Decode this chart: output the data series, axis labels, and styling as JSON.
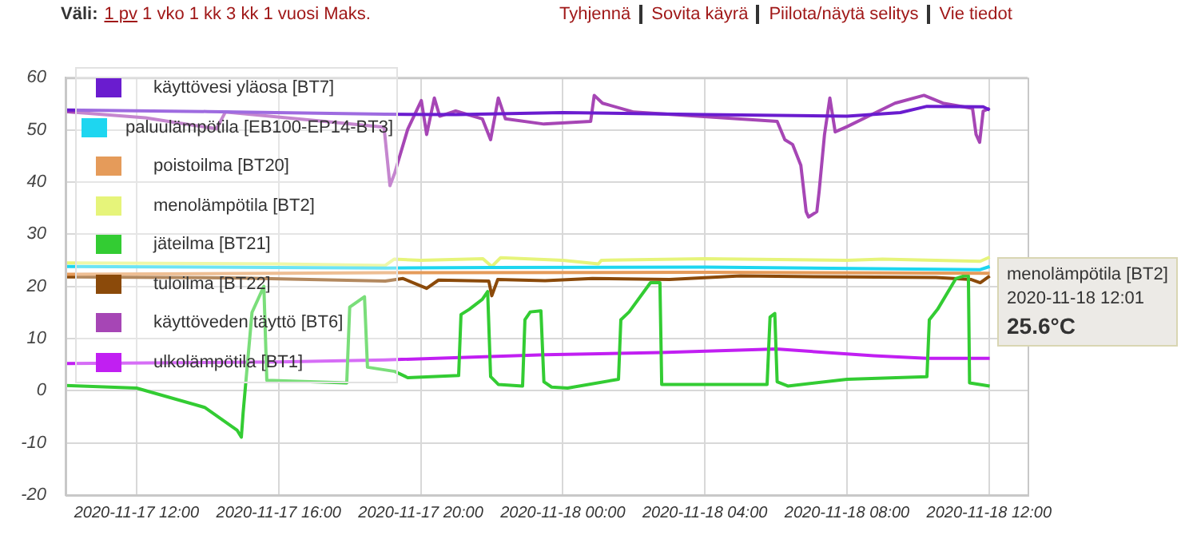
{
  "chart_data": {
    "type": "line",
    "xlim": [
      "2020-11-17T10:00",
      "2020-11-18T13:05"
    ],
    "xticks": [
      {
        "value": "2020-11-17T12:00",
        "label": "2020-11-17 12:00"
      },
      {
        "value": "2020-11-17T16:00",
        "label": "2020-11-17 16:00"
      },
      {
        "value": "2020-11-17T20:00",
        "label": "2020-11-17 20:00"
      },
      {
        "value": "2020-11-18T00:00",
        "label": "2020-11-18 00:00"
      },
      {
        "value": "2020-11-18T04:00",
        "label": "2020-11-18 04:00"
      },
      {
        "value": "2020-11-18T08:00",
        "label": "2020-11-18 08:00"
      },
      {
        "value": "2020-11-18T12:00",
        "label": "2020-11-18 12:00"
      }
    ],
    "ylim": [
      -20,
      60
    ],
    "yticks": [
      -20,
      -10,
      0,
      10,
      20,
      30,
      40,
      50,
      60
    ],
    "grid": true,
    "legend": "top left",
    "marker": "none",
    "line_style": "solid",
    "annotations": [
      "Väli:",
      "1 pv",
      "1 vko",
      "1 kk",
      "3 kk",
      "1 vuosi",
      "Maks.",
      "Tyhjennä",
      "Sovita käyrä",
      "Piilota/näytä selitys",
      "Vie tiedot",
      "menolämpötila [BT2]",
      "2020-11-18 12:01",
      "25.6°C"
    ],
    "series": [
      {
        "name": "käyttövesi yläosa [BT7]",
        "color": "#6a1ccf",
        "x": [
          "2020-11-17T10:00",
          "2020-11-17T14:00",
          "2020-11-17T19:00",
          "2020-11-17T21:00",
          "2020-11-18T00:00",
          "2020-11-18T04:00",
          "2020-11-18T08:00",
          "2020-11-18T09:30",
          "2020-11-18T10:15",
          "2020-11-18T11:50",
          "2020-11-18T12:01"
        ],
        "values": [
          53.8,
          53.5,
          53.0,
          52.9,
          53.3,
          52.9,
          52.6,
          53.3,
          54.5,
          54.4,
          53.8
        ]
      },
      {
        "name": "paluulämpötila [EB100-EP14-BT3]",
        "color": "#1ed6f0",
        "x": [
          "2020-11-17T10:00",
          "2020-11-17T19:00",
          "2020-11-17T22:00",
          "2020-11-18T04:00",
          "2020-11-18T11:45",
          "2020-11-18T12:01"
        ],
        "values": [
          23.8,
          23.5,
          23.6,
          23.7,
          23.2,
          23.8
        ]
      },
      {
        "name": "poistoilma [BT20]",
        "color": "#e59b5a",
        "x": [
          "2020-11-17T10:00",
          "2020-11-17T19:00",
          "2020-11-18T04:00",
          "2020-11-18T12:01"
        ],
        "values": [
          22.3,
          22.6,
          22.7,
          22.5
        ]
      },
      {
        "name": "menolämpötila [BT2]",
        "color": "#e6f47a",
        "x": [
          "2020-11-17T10:00",
          "2020-11-17T16:00",
          "2020-11-17T19:00",
          "2020-11-17T19:15",
          "2020-11-17T20:00",
          "2020-11-17T21:45",
          "2020-11-17T22:00",
          "2020-11-17T22:15",
          "2020-11-18T00:00",
          "2020-11-18T01:00",
          "2020-11-18T01:05",
          "2020-11-18T04:00",
          "2020-11-18T08:00",
          "2020-11-18T09:00",
          "2020-11-18T11:45",
          "2020-11-18T12:01"
        ],
        "values": [
          24.5,
          24.3,
          24.0,
          25.2,
          25.0,
          25.3,
          23.8,
          25.5,
          25.0,
          24.3,
          25.0,
          25.3,
          25.0,
          25.2,
          24.8,
          25.6
        ]
      },
      {
        "name": "jäteilma [BT21]",
        "color": "#33cc33",
        "x": [
          "2020-11-17T10:00",
          "2020-11-17T12:00",
          "2020-11-17T13:55",
          "2020-11-17T14:50",
          "2020-11-17T14:57",
          "2020-11-17T15:00",
          "2020-11-17T15:15",
          "2020-11-17T15:35",
          "2020-11-17T15:40",
          "2020-11-17T17:55",
          "2020-11-17T18:00",
          "2020-11-17T18:25",
          "2020-11-17T18:30",
          "2020-11-17T19:16",
          "2020-11-17T19:38",
          "2020-11-17T21:04",
          "2020-11-17T21:08",
          "2020-11-17T21:22",
          "2020-11-17T21:44",
          "2020-11-17T21:53",
          "2020-11-17T21:58",
          "2020-11-17T22:11",
          "2020-11-17T22:52",
          "2020-11-17T22:56",
          "2020-11-17T23:05",
          "2020-11-17T23:23",
          "2020-11-17T23:28",
          "2020-11-17T23:41",
          "2020-11-18T00:08",
          "2020-11-18T01:34",
          "2020-11-18T01:38",
          "2020-11-18T01:52",
          "2020-11-18T02:28",
          "2020-11-18T02:44",
          "2020-11-18T02:47",
          "2020-11-18T05:45",
          "2020-11-18T05:50",
          "2020-11-18T05:58",
          "2020-11-18T06:02",
          "2020-11-18T06:20",
          "2020-11-18T08:00",
          "2020-11-18T10:15",
          "2020-11-18T10:19",
          "2020-11-18T10:33",
          "2020-11-18T11:04",
          "2020-11-18T11:17",
          "2020-11-18T11:25",
          "2020-11-18T11:27",
          "2020-11-18T12:01"
        ],
        "values": [
          1.0,
          0.5,
          -3.2,
          -7.6,
          -8.9,
          -4.2,
          15.0,
          20.0,
          2.0,
          1.5,
          16.0,
          18.0,
          4.5,
          3.7,
          2.5,
          2.9,
          14.6,
          15.6,
          17.5,
          19.0,
          2.7,
          1.2,
          0.9,
          13.6,
          15.1,
          15.3,
          1.7,
          0.7,
          0.5,
          2.2,
          13.6,
          15.1,
          20.7,
          20.7,
          1.2,
          1.2,
          14.1,
          14.8,
          1.7,
          0.9,
          2.2,
          2.7,
          13.6,
          15.6,
          21.5,
          22.0,
          22.0,
          1.5,
          0.9
        ]
      },
      {
        "name": "tuloilma [BT22]",
        "color": "#8b4a0a",
        "x": [
          "2020-11-17T10:00",
          "2020-11-17T15:00",
          "2020-11-17T19:00",
          "2020-11-17T19:30",
          "2020-11-17T20:10",
          "2020-11-17T20:30",
          "2020-11-17T21:55",
          "2020-11-17T22:00",
          "2020-11-17T22:10",
          "2020-11-17T23:30",
          "2020-11-18T00:50",
          "2020-11-18T03:00",
          "2020-11-18T05:00",
          "2020-11-18T08:00",
          "2020-11-18T10:30",
          "2020-11-18T11:30",
          "2020-11-18T11:45",
          "2020-11-18T12:01"
        ],
        "values": [
          21.8,
          21.6,
          21.0,
          21.5,
          19.6,
          21.2,
          21.0,
          18.2,
          21.3,
          21.1,
          21.5,
          21.3,
          22.0,
          21.8,
          21.7,
          21.3,
          20.7,
          22.0
        ]
      },
      {
        "name": "käyttöveden täyttö [BT6]",
        "color": "#a646b5",
        "x": [
          "2020-11-17T10:00",
          "2020-11-17T12:15",
          "2020-11-17T14:15",
          "2020-11-17T14:30",
          "2020-11-17T17:10",
          "2020-11-17T18:58",
          "2020-11-17T19:08",
          "2020-11-17T19:16",
          "2020-11-17T19:38",
          "2020-11-17T20:01",
          "2020-11-17T20:10",
          "2020-11-17T20:23",
          "2020-11-17T20:32",
          "2020-11-17T20:59",
          "2020-11-17T21:44",
          "2020-11-17T21:58",
          "2020-11-17T22:11",
          "2020-11-17T22:23",
          "2020-11-17T23:28",
          "2020-11-18T00:47",
          "2020-11-18T00:53",
          "2020-11-18T01:07",
          "2020-11-18T02:00",
          "2020-11-18T06:02",
          "2020-11-18T06:15",
          "2020-11-18T06:28",
          "2020-11-18T06:42",
          "2020-11-18T06:51",
          "2020-11-18T06:55",
          "2020-11-18T07:09",
          "2020-11-18T07:13",
          "2020-11-18T07:22",
          "2020-11-18T07:31",
          "2020-11-18T07:40",
          "2020-11-18T08:00",
          "2020-11-18T08:45",
          "2020-11-18T09:21",
          "2020-11-18T10:10",
          "2020-11-18T10:42",
          "2020-11-18T11:32",
          "2020-11-18T11:38",
          "2020-11-18T11:44",
          "2020-11-18T11:50",
          "2020-11-18T12:01"
        ],
        "values": [
          53.5,
          52.3,
          50.2,
          53.4,
          51.7,
          50.5,
          39.3,
          41.7,
          50.1,
          55.6,
          49.1,
          56.1,
          52.6,
          53.6,
          52.1,
          48.1,
          56.1,
          52.1,
          51.1,
          51.6,
          56.6,
          55.1,
          53.4,
          51.6,
          48.1,
          47.2,
          43.2,
          34.3,
          33.3,
          34.3,
          38.3,
          49.1,
          56.1,
          49.6,
          50.6,
          53.1,
          55.1,
          56.6,
          55.1,
          54.1,
          49.1,
          47.6,
          53.6,
          54.1
        ]
      },
      {
        "name": "ulkolämpötila [BT1]",
        "color": "#c11ff2",
        "x": [
          "2020-11-17T10:00",
          "2020-11-17T16:00",
          "2020-11-17T19:00",
          "2020-11-17T23:30",
          "2020-11-18T02:45",
          "2020-11-18T05:30",
          "2020-11-18T06:00",
          "2020-11-18T08:45",
          "2020-11-18T10:15",
          "2020-11-18T12:01"
        ],
        "values": [
          5.2,
          5.5,
          5.9,
          6.9,
          7.3,
          7.9,
          8.0,
          6.7,
          6.2,
          6.2
        ]
      }
    ]
  }
}
